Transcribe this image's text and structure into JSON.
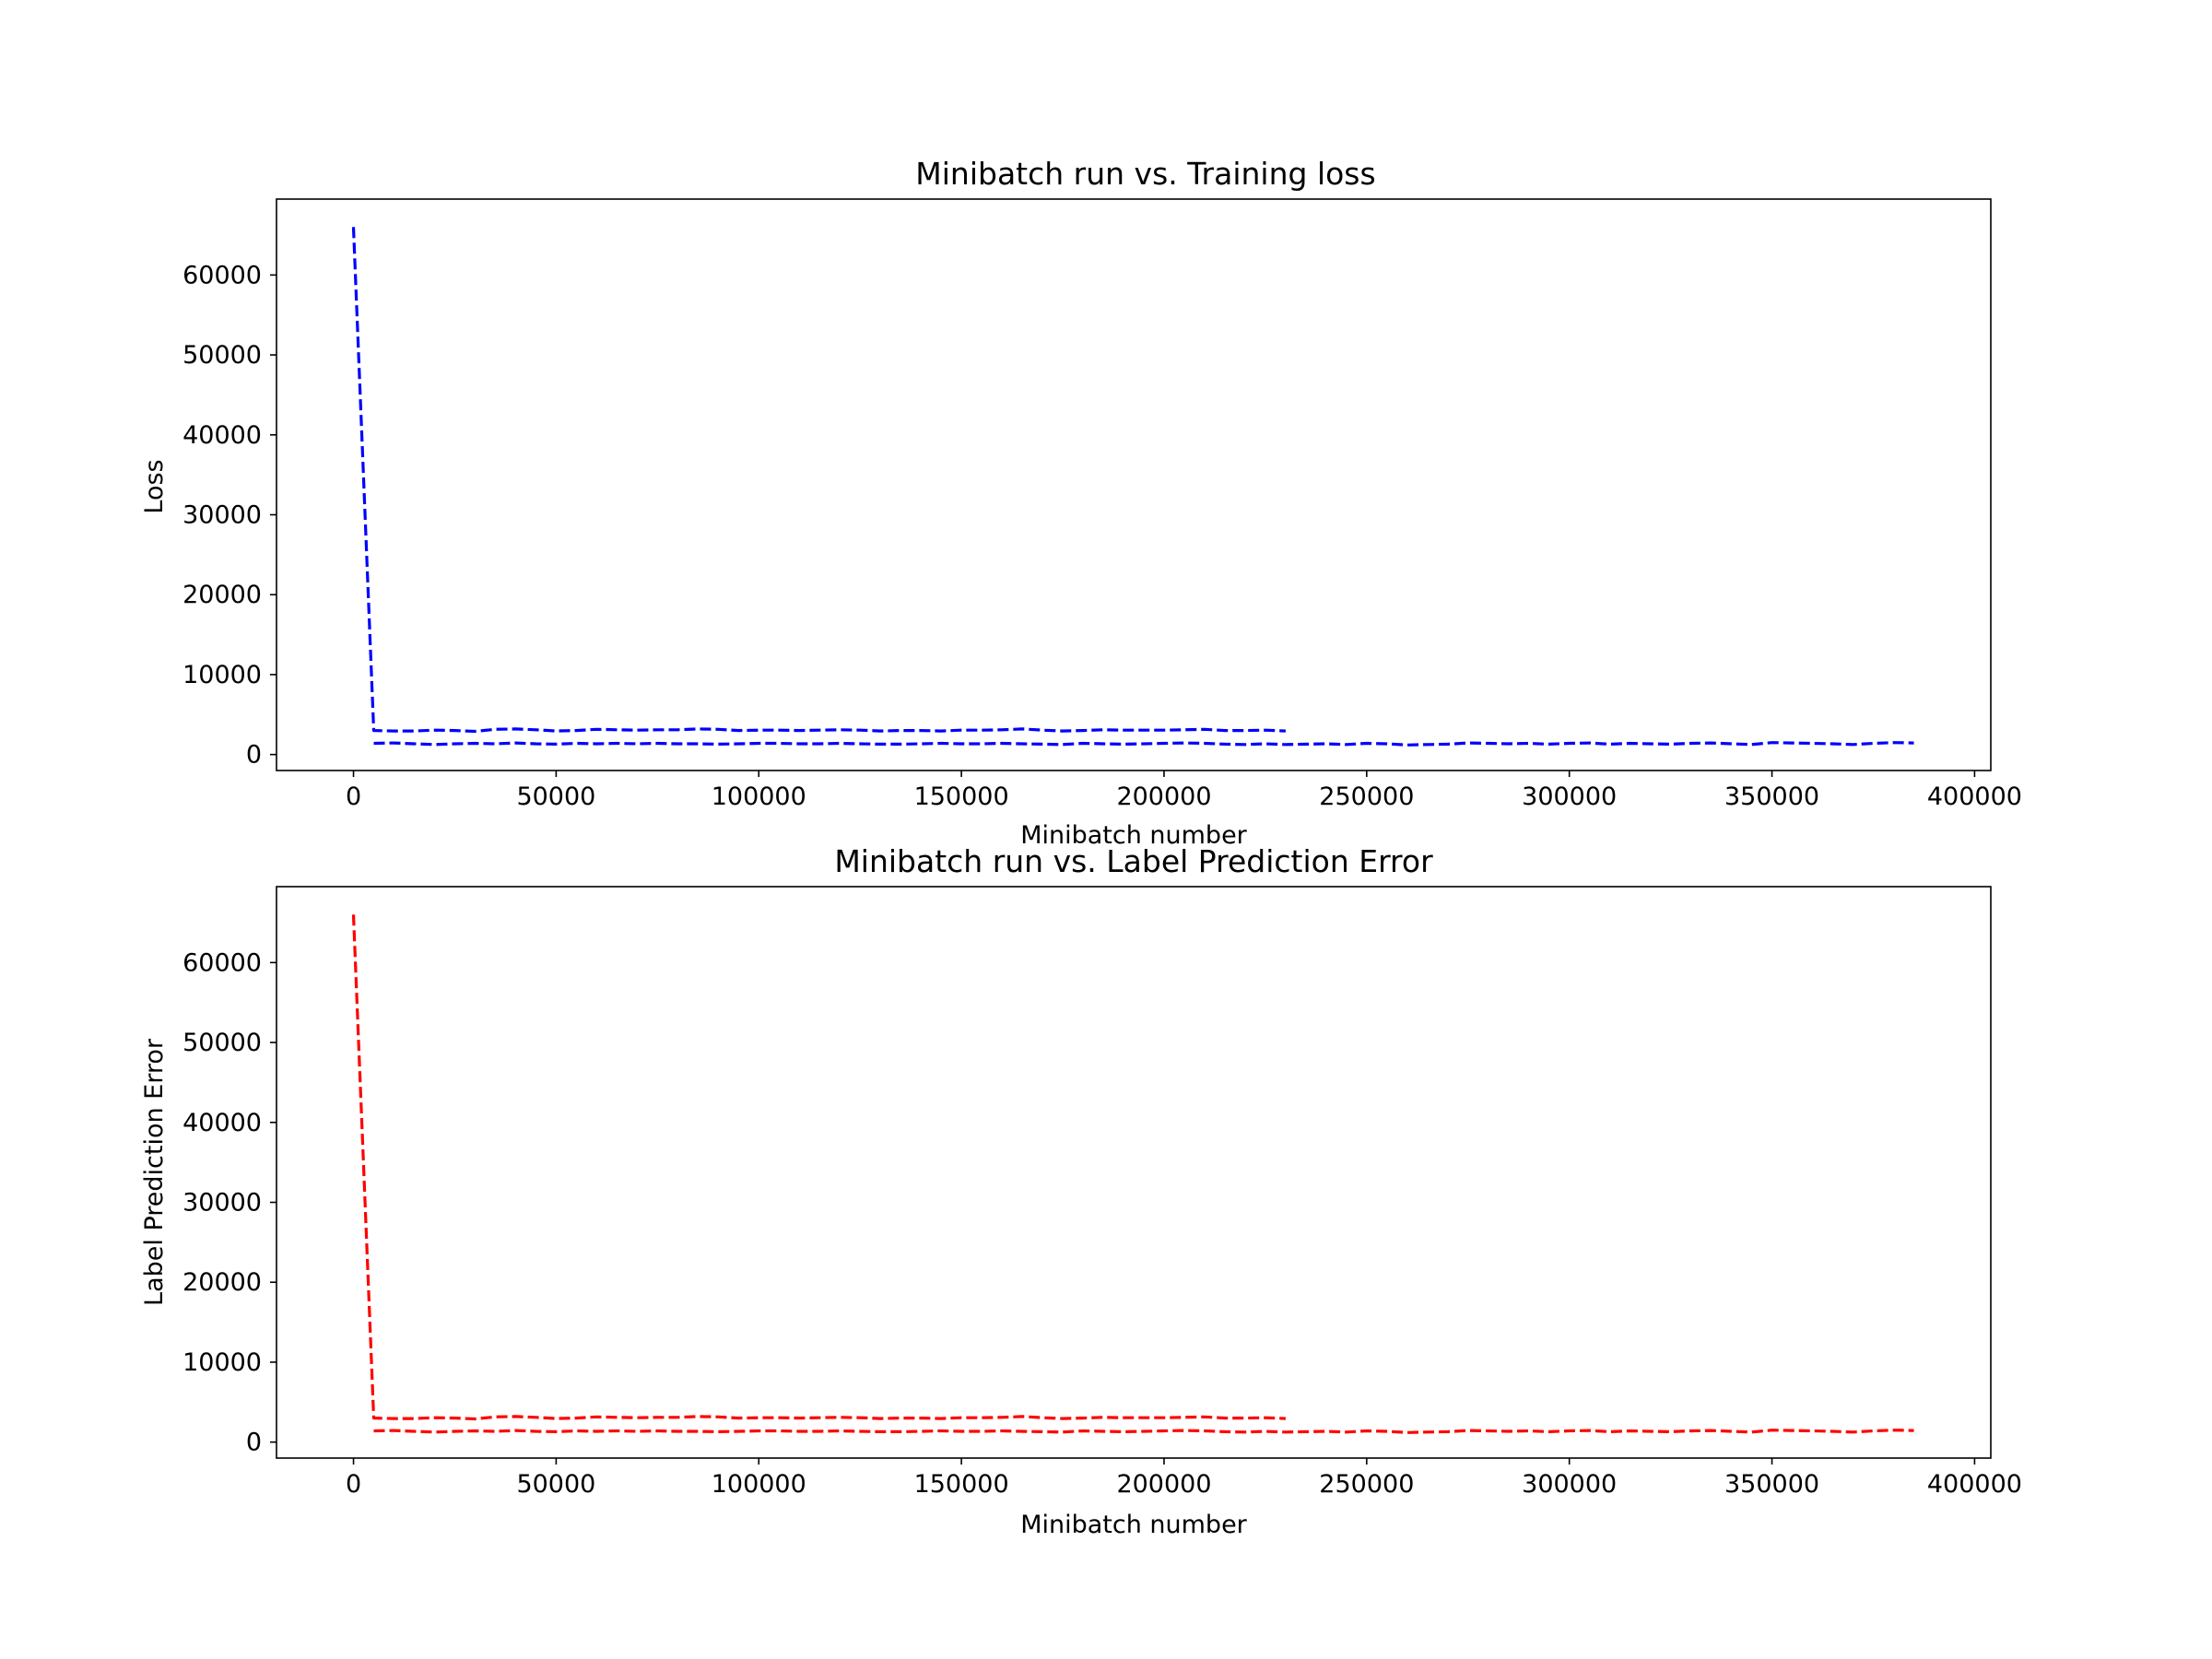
{
  "chart_data": [
    {
      "type": "line",
      "title": "Minibatch run vs. Training loss",
      "xlabel": "Minibatch number",
      "ylabel": "Loss",
      "xlim": [
        -19000,
        404000
      ],
      "ylim": [
        -2000,
        69500
      ],
      "xticks": [
        0,
        50000,
        100000,
        150000,
        200000,
        250000,
        300000,
        350000,
        400000
      ],
      "yticks": [
        0,
        10000,
        20000,
        30000,
        40000,
        50000,
        60000
      ],
      "grid": false,
      "line_style": "dashed",
      "color": "#0000ff",
      "series": [
        {
          "x": [
            0,
            5000,
            10000,
            15000,
            20000,
            25000,
            30000,
            35000,
            40000,
            45000,
            50000,
            55000,
            60000,
            65000,
            70000,
            75000,
            80000,
            85000,
            90000,
            95000,
            100000,
            105000,
            110000,
            115000,
            120000,
            125000,
            130000,
            135000,
            140000,
            145000,
            150000,
            155000,
            160000,
            165000,
            170000,
            175000,
            180000,
            185000,
            190000,
            195000,
            200000,
            205000,
            210000,
            215000,
            220000,
            225000,
            230000
          ],
          "y": [
            66000,
            3000,
            2950,
            2950,
            3050,
            3000,
            2900,
            3150,
            3200,
            3100,
            2950,
            3000,
            3150,
            3100,
            3050,
            3100,
            3100,
            3200,
            3150,
            3000,
            3050,
            3050,
            3000,
            3050,
            3100,
            3050,
            2950,
            3000,
            3000,
            2950,
            3050,
            3050,
            3100,
            3200,
            3050,
            2950,
            3000,
            3100,
            3050,
            3050,
            3050,
            3100,
            3150,
            3000,
            3000,
            3050,
            2950
          ]
        },
        {
          "x": [
            5000,
            10000,
            15000,
            20000,
            25000,
            30000,
            35000,
            40000,
            45000,
            50000,
            55000,
            60000,
            65000,
            70000,
            75000,
            80000,
            85000,
            90000,
            95000,
            100000,
            105000,
            110000,
            115000,
            120000,
            125000,
            130000,
            135000,
            140000,
            145000,
            150000,
            155000,
            160000,
            165000,
            170000,
            175000,
            180000,
            185000,
            190000,
            195000,
            200000,
            205000,
            210000,
            215000,
            220000,
            225000,
            230000,
            235000,
            240000,
            245000,
            250000,
            255000,
            260000,
            265000,
            270000,
            275000,
            280000,
            285000,
            290000,
            295000,
            300000,
            305000,
            310000,
            315000,
            320000,
            325000,
            330000,
            335000,
            340000,
            345000,
            350000,
            355000,
            360000,
            365000,
            370000,
            375000,
            380000,
            385000
          ],
          "y": [
            1400,
            1450,
            1350,
            1250,
            1350,
            1400,
            1350,
            1450,
            1350,
            1300,
            1400,
            1350,
            1400,
            1350,
            1400,
            1350,
            1350,
            1300,
            1350,
            1400,
            1400,
            1350,
            1350,
            1400,
            1350,
            1300,
            1300,
            1350,
            1400,
            1350,
            1350,
            1400,
            1350,
            1300,
            1250,
            1400,
            1350,
            1300,
            1350,
            1400,
            1450,
            1400,
            1300,
            1250,
            1350,
            1250,
            1300,
            1350,
            1250,
            1400,
            1350,
            1200,
            1250,
            1300,
            1450,
            1400,
            1350,
            1400,
            1300,
            1400,
            1450,
            1300,
            1400,
            1350,
            1300,
            1400,
            1450,
            1350,
            1250,
            1500,
            1450,
            1400,
            1350,
            1250,
            1400,
            1500,
            1450
          ]
        }
      ]
    },
    {
      "type": "line",
      "title": "Minibatch run vs. Label Prediction Error",
      "xlabel": "Minibatch number",
      "ylabel": "Label Prediction Error",
      "xlim": [
        -19000,
        404000
      ],
      "ylim": [
        -2000,
        69500
      ],
      "xticks": [
        0,
        50000,
        100000,
        150000,
        200000,
        250000,
        300000,
        350000,
        400000
      ],
      "yticks": [
        0,
        10000,
        20000,
        30000,
        40000,
        50000,
        60000
      ],
      "grid": false,
      "line_style": "dashed",
      "color": "#ff0000",
      "series": [
        {
          "x": [
            0,
            5000,
            10000,
            15000,
            20000,
            25000,
            30000,
            35000,
            40000,
            45000,
            50000,
            55000,
            60000,
            65000,
            70000,
            75000,
            80000,
            85000,
            90000,
            95000,
            100000,
            105000,
            110000,
            115000,
            120000,
            125000,
            130000,
            135000,
            140000,
            145000,
            150000,
            155000,
            160000,
            165000,
            170000,
            175000,
            180000,
            185000,
            190000,
            195000,
            200000,
            205000,
            210000,
            215000,
            220000,
            225000,
            230000
          ],
          "y": [
            66000,
            3000,
            2950,
            2950,
            3050,
            3000,
            2900,
            3150,
            3200,
            3100,
            2950,
            3000,
            3150,
            3100,
            3050,
            3100,
            3100,
            3200,
            3150,
            3000,
            3050,
            3050,
            3000,
            3050,
            3100,
            3050,
            2950,
            3000,
            3000,
            2950,
            3050,
            3050,
            3100,
            3200,
            3050,
            2950,
            3000,
            3100,
            3050,
            3050,
            3050,
            3100,
            3150,
            3000,
            3000,
            3050,
            2950
          ]
        },
        {
          "x": [
            5000,
            10000,
            15000,
            20000,
            25000,
            30000,
            35000,
            40000,
            45000,
            50000,
            55000,
            60000,
            65000,
            70000,
            75000,
            80000,
            85000,
            90000,
            95000,
            100000,
            105000,
            110000,
            115000,
            120000,
            125000,
            130000,
            135000,
            140000,
            145000,
            150000,
            155000,
            160000,
            165000,
            170000,
            175000,
            180000,
            185000,
            190000,
            195000,
            200000,
            205000,
            210000,
            215000,
            220000,
            225000,
            230000,
            235000,
            240000,
            245000,
            250000,
            255000,
            260000,
            265000,
            270000,
            275000,
            280000,
            285000,
            290000,
            295000,
            300000,
            305000,
            310000,
            315000,
            320000,
            325000,
            330000,
            335000,
            340000,
            345000,
            350000,
            355000,
            360000,
            365000,
            370000,
            375000,
            380000,
            385000
          ],
          "y": [
            1400,
            1450,
            1350,
            1250,
            1350,
            1400,
            1350,
            1450,
            1350,
            1300,
            1400,
            1350,
            1400,
            1350,
            1400,
            1350,
            1350,
            1300,
            1350,
            1400,
            1400,
            1350,
            1350,
            1400,
            1350,
            1300,
            1300,
            1350,
            1400,
            1350,
            1350,
            1400,
            1350,
            1300,
            1250,
            1400,
            1350,
            1300,
            1350,
            1400,
            1450,
            1400,
            1300,
            1250,
            1350,
            1250,
            1300,
            1350,
            1250,
            1400,
            1350,
            1200,
            1250,
            1300,
            1450,
            1400,
            1350,
            1400,
            1300,
            1400,
            1450,
            1300,
            1400,
            1350,
            1300,
            1400,
            1450,
            1350,
            1250,
            1500,
            1450,
            1400,
            1350,
            1250,
            1400,
            1500,
            1450
          ]
        }
      ]
    }
  ]
}
